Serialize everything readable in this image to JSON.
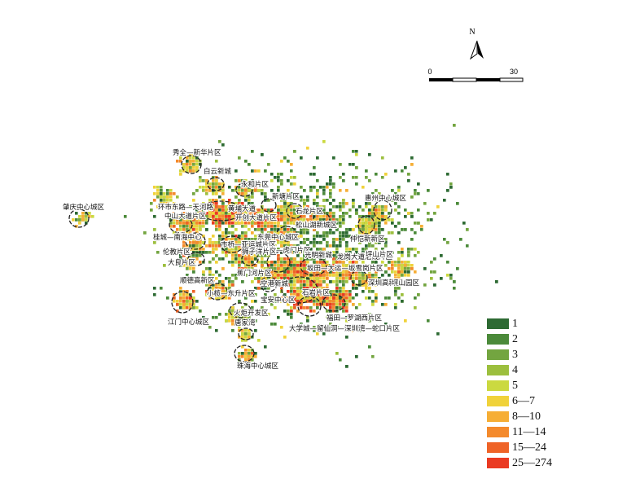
{
  "north_label": "N",
  "scale": {
    "zero": "0",
    "end": "30"
  },
  "colors": {
    "ring": "#222222",
    "low": [
      "#2d6a33",
      "#4b8a3a",
      "#73a540",
      "#9cbf3e",
      "#cbd940"
    ],
    "high": [
      "#f0d23a",
      "#f6ae35",
      "#f48a2c",
      "#ef6327",
      "#ea3a22"
    ]
  },
  "legend": {
    "items": [
      {
        "label": "1",
        "color": "#2d6a33"
      },
      {
        "label": "2",
        "color": "#4b8a3a"
      },
      {
        "label": "3",
        "color": "#73a540"
      },
      {
        "label": "4",
        "color": "#9cbf3e"
      },
      {
        "label": "5",
        "color": "#cbd940"
      },
      {
        "label": "6—7",
        "color": "#f0d23a"
      },
      {
        "label": "8—10",
        "color": "#f6ae35"
      },
      {
        "label": "11—14",
        "color": "#f48a2c"
      },
      {
        "label": "15—24",
        "color": "#ef6327"
      },
      {
        "label": "25—274",
        "color": "#ea3a22"
      }
    ]
  },
  "places": [
    "秀全—新华片区",
    "白云新城",
    "永和片区",
    "环市东路—天河路",
    "中山大道片区",
    "黄埔大道",
    "开创大道片区",
    "新塘片区",
    "惠州中心城区",
    "肇庆中心城区",
    "石龙片区",
    "松山湖新城区",
    "东莞中心城区",
    "仲恺新新区",
    "桂城—南海中心",
    "市桥—亚运城片区",
    "长安—虎门片区",
    "光明新城",
    "龙岗大道沿线片区",
    "坪山片区",
    "坂田—大运—坂雪岗片区",
    "深圳高新区",
    "坪山园区",
    "伦教片区",
    "大良片区",
    "狮子洋片区",
    "蕉门河片区",
    "空港新城",
    "顺德高新区",
    "小榄—东升片区",
    "宝安中心区",
    "石岩片区",
    "福田—罗湖西片区",
    "江门中心城区",
    "火炬开发区",
    "大学城—留仙洞—深圳湾—蛇口片区",
    "唐家湾",
    "珠海中心城区"
  ]
}
